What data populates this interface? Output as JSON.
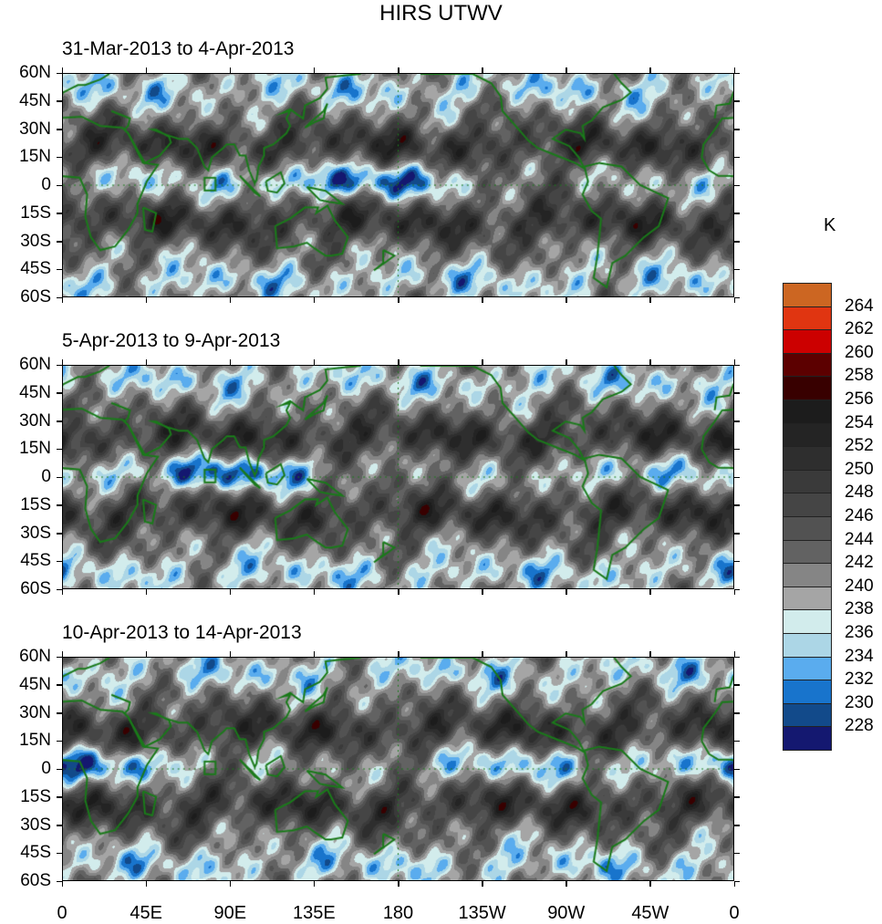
{
  "chart_data": {
    "type": "heatmap",
    "title": "HIRS UTWV",
    "units": "K",
    "panels": [
      {
        "title": "31-Mar-2013 to 4-Apr-2013"
      },
      {
        "title": "5-Apr-2013 to 9-Apr-2013"
      },
      {
        "title": "10-Apr-2013 to 14-Apr-2013"
      }
    ],
    "ylim": [
      -60,
      60
    ],
    "xlim": [
      0,
      360
    ],
    "y_ticks": [
      "60N",
      "45N",
      "30N",
      "15N",
      "0",
      "15S",
      "30S",
      "45S",
      "60S"
    ],
    "x_ticks": [
      "0",
      "45E",
      "90E",
      "135E",
      "180",
      "135W",
      "90W",
      "45W",
      "0"
    ],
    "colorbar": {
      "labels": [
        "264",
        "262",
        "260",
        "258",
        "256",
        "254",
        "252",
        "250",
        "248",
        "246",
        "244",
        "242",
        "240",
        "238",
        "236",
        "234",
        "232",
        "230",
        "228"
      ],
      "colors": [
        "#cc6622",
        "#e03511",
        "#cc0000",
        "#5c0000",
        "#380000",
        "#1c1c1c",
        "#242424",
        "#2e2e2e",
        "#3a3a3a",
        "#454545",
        "#525252",
        "#626262",
        "#858585",
        "#a5a5a5",
        "#d2ecec",
        "#acd6e6",
        "#5aacee",
        "#1874cc",
        "#124a8a",
        "#141870"
      ]
    },
    "coastline_color": "#1a7a1a"
  }
}
